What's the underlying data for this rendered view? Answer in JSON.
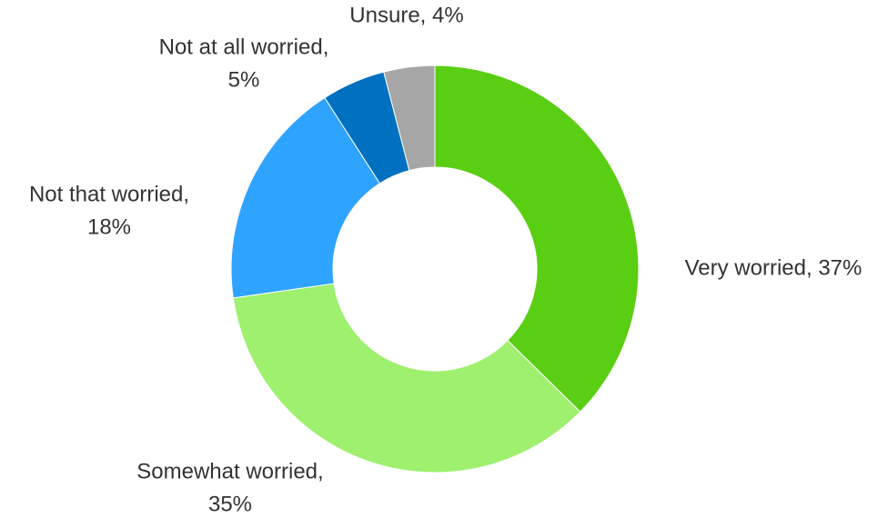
{
  "chart_data": {
    "type": "donut",
    "labels": [
      [
        "Very worried, 37%"
      ],
      [
        "Somewhat worried,",
        "35%"
      ],
      [
        "Not that worried,",
        "18%"
      ],
      [
        "Not at all worried,",
        "5%"
      ],
      [
        "Unsure, 4%"
      ]
    ],
    "values": [
      37,
      35,
      18,
      5,
      4
    ],
    "colors": [
      "#5ace12",
      "#9ef06e",
      "#2ea3ff",
      "#0070c0",
      "#a6a6a6"
    ]
  }
}
